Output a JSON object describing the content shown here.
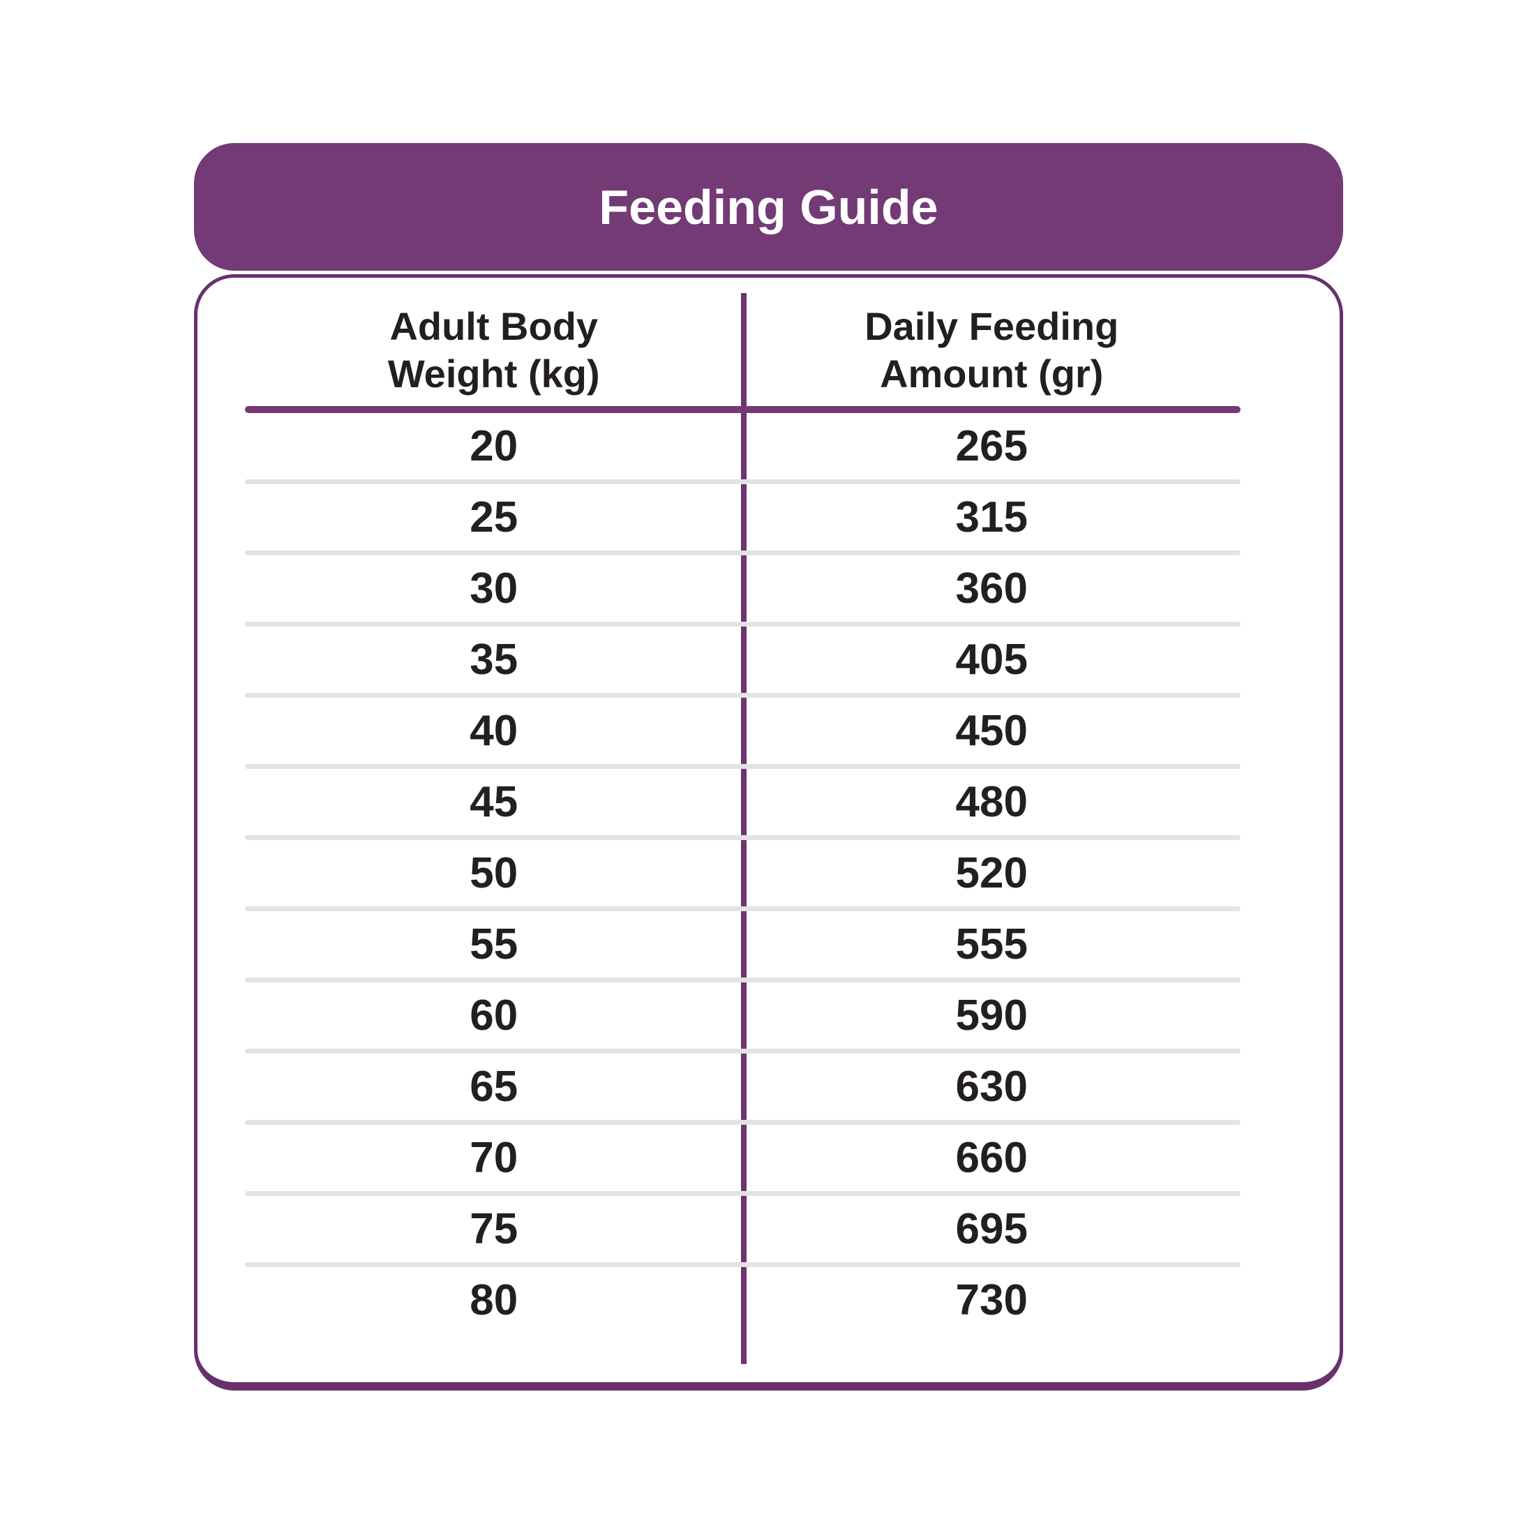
{
  "header": {
    "title": "Feeding Guide"
  },
  "table": {
    "columns": [
      {
        "label_line1": "Adult Body",
        "label_line2": "Weight (kg)"
      },
      {
        "label_line1": "Daily Feeding",
        "label_line2": "Amount (gr)"
      }
    ],
    "rows": [
      {
        "weight_kg": "20",
        "amount_gr": "265"
      },
      {
        "weight_kg": "25",
        "amount_gr": "315"
      },
      {
        "weight_kg": "30",
        "amount_gr": "360"
      },
      {
        "weight_kg": "35",
        "amount_gr": "405"
      },
      {
        "weight_kg": "40",
        "amount_gr": "450"
      },
      {
        "weight_kg": "45",
        "amount_gr": "480"
      },
      {
        "weight_kg": "50",
        "amount_gr": "520"
      },
      {
        "weight_kg": "55",
        "amount_gr": "555"
      },
      {
        "weight_kg": "60",
        "amount_gr": "590"
      },
      {
        "weight_kg": "65",
        "amount_gr": "630"
      },
      {
        "weight_kg": "70",
        "amount_gr": "660"
      },
      {
        "weight_kg": "75",
        "amount_gr": "695"
      },
      {
        "weight_kg": "80",
        "amount_gr": "730"
      }
    ]
  },
  "chart_data": {
    "type": "table",
    "title": "Feeding Guide",
    "columns": [
      "Adult Body Weight (kg)",
      "Daily Feeding Amount (gr)"
    ],
    "categories": [
      20,
      25,
      30,
      35,
      40,
      45,
      50,
      55,
      60,
      65,
      70,
      75,
      80
    ],
    "values": [
      265,
      315,
      360,
      405,
      450,
      480,
      520,
      555,
      590,
      630,
      660,
      695,
      730
    ],
    "xlabel": "Adult Body Weight (kg)",
    "ylabel": "Daily Feeding Amount (gr)"
  },
  "colors": {
    "purple_header": "#733A76",
    "purple_border": "#68316B",
    "purple_divider": "#6D3470",
    "separator_gray": "#E3E3E3",
    "text_black": "#231F20",
    "background": "#FFFFFF"
  }
}
